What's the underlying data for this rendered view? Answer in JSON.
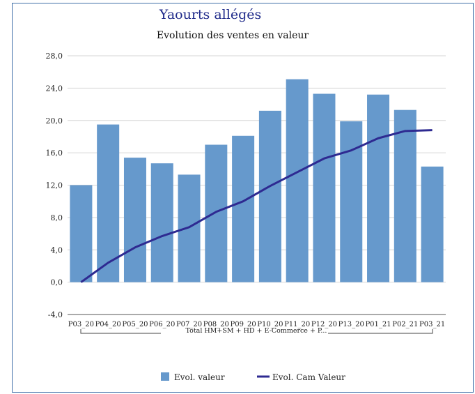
{
  "chart_data": {
    "type": "bar",
    "title": "Yaourts allégés",
    "subtitle": "Evolution des ventes en valeur",
    "categories": [
      "P03_20",
      "P04_20",
      "P05_20",
      "P06_20",
      "P07_20",
      "P08_20",
      "P09_20",
      "P10_20",
      "P11_20",
      "P12_20",
      "P13_20",
      "P01_21",
      "P02_21",
      "P03_21"
    ],
    "group_label": "Total HM+SM + HD + E-Commerce + P...",
    "series": [
      {
        "name": "Evol.  valeur",
        "type": "bar",
        "color": "#6699cc",
        "values": [
          12.0,
          19.5,
          15.4,
          14.7,
          13.3,
          17.0,
          18.1,
          21.2,
          25.1,
          23.3,
          19.9,
          23.2,
          21.3,
          14.3
        ]
      },
      {
        "name": "Evol. Cam Valeur",
        "type": "line",
        "color": "#2e2a91",
        "values": [
          0.0,
          2.4,
          4.3,
          5.7,
          6.8,
          8.7,
          10.0,
          11.9,
          13.6,
          15.3,
          16.3,
          17.8,
          18.7,
          18.8
        ]
      }
    ],
    "ylim": [
      -4.0,
      28.0
    ],
    "yticks": [
      "-4,0",
      "0,0",
      "4,0",
      "8,0",
      "12,0",
      "16,0",
      "20,0",
      "24,0",
      "28,0"
    ],
    "grid": true,
    "legend_position": "bottom"
  }
}
